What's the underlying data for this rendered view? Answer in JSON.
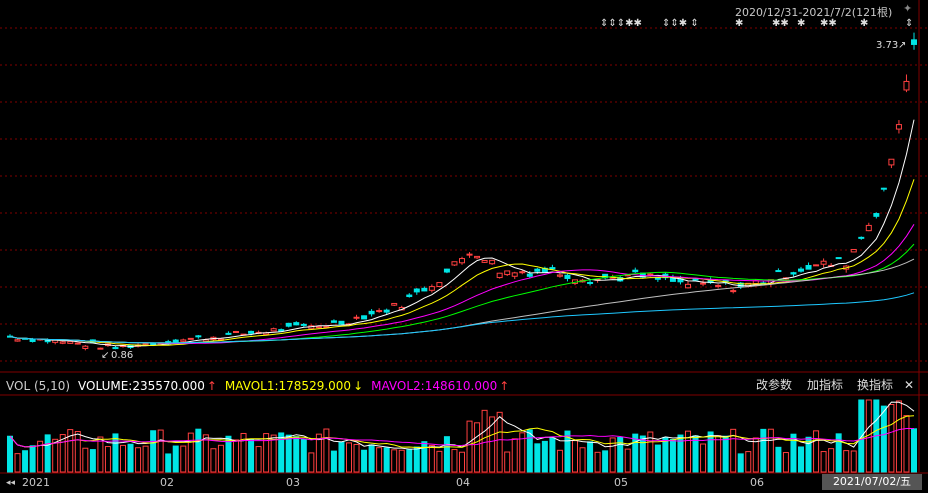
{
  "range_title": "2020/12/31-2021/7/2(121根)",
  "pin_icon": "pin-icon",
  "price_labels": {
    "high": "3.73",
    "low": "0.86"
  },
  "volume_header": {
    "vol": "VOL (5,10)",
    "volume": "VOLUME:235570.000",
    "volume_arrow": "↑",
    "mavol1": "MAVOL1:178529.000",
    "mavol1_arrow": "↓",
    "mavol2": "MAVOL2:148610.000",
    "mavol2_arrow": "↑"
  },
  "toolbar": {
    "params_label": "改参数",
    "add_indicator_label": "加指标",
    "switch_indicator_label": "换指标",
    "close_label": "✕"
  },
  "x_axis": {
    "scroll_left": "◂◂",
    "labels": [
      "2021",
      "02",
      "03",
      "04",
      "05",
      "06"
    ],
    "current_date": "2021/07/02/五"
  },
  "colors": {
    "up": "#ff4040",
    "down": "#00e5e5",
    "ma5": "#ffffff",
    "ma10": "#ffff00",
    "ma20": "#ff00ff",
    "ma30": "#00ff00",
    "ma60": "#c0c0c0",
    "ma120": "#1ec8ff",
    "grid": "#800000"
  },
  "chart_data": {
    "type": "candlestick",
    "candles": 121,
    "high_marker": 3.73,
    "low_marker": 0.86,
    "volume_series": [
      "VOLUME",
      "MAVOL1",
      "MAVOL2"
    ]
  }
}
